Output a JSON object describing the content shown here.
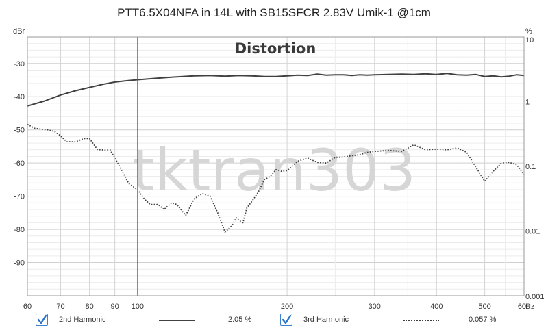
{
  "chart_data": {
    "type": "line",
    "title": "PTT6.5X04NFA in 14L with SB15SFCR 2.83V Umik-1 @1cm",
    "plot_label": "Distortion",
    "watermark": "tktran303",
    "x_axis": {
      "scale": "log",
      "range": [
        60,
        600
      ],
      "unit": "Hz",
      "ticks": [
        60,
        70,
        80,
        90,
        100,
        200,
        300,
        400,
        500,
        600
      ],
      "tick_labels": [
        "60",
        "70",
        "80",
        "90",
        "100",
        "200",
        "300",
        "400",
        "500",
        "600"
      ]
    },
    "y_axis_left": {
      "unit": "dBr",
      "range": [
        -100,
        -22
      ],
      "ticks": [
        -30,
        -40,
        -50,
        -60,
        -70,
        -80,
        -90
      ]
    },
    "y_axis_right": {
      "unit": "%",
      "scale": "log",
      "range": [
        0.001,
        10
      ],
      "ticks": [
        10,
        1,
        0.1,
        0.01,
        0.001
      ],
      "tick_labels": [
        "10",
        "1",
        "0.1",
        "0.01",
        "0.001"
      ]
    },
    "grid": true,
    "cursor_x": 100,
    "legend_placement": "bottom",
    "series": [
      {
        "name": "2nd Harmonic",
        "value_label": "2.05 %",
        "checked": true,
        "style": "solid",
        "color": "#404040",
        "x": [
          60,
          65,
          70,
          75,
          80,
          85,
          90,
          95,
          100,
          110,
          120,
          130,
          140,
          150,
          160,
          170,
          180,
          190,
          200,
          210,
          220,
          230,
          240,
          250,
          260,
          270,
          280,
          290,
          300,
          320,
          340,
          360,
          380,
          400,
          420,
          440,
          460,
          480,
          500,
          520,
          540,
          560,
          580,
          600
        ],
        "y": [
          -42.8,
          -41.3,
          -39.5,
          -38.2,
          -37.2,
          -36.3,
          -35.6,
          -35.2,
          -34.9,
          -34.4,
          -34.0,
          -33.7,
          -33.6,
          -33.8,
          -33.6,
          -33.7,
          -33.9,
          -33.9,
          -33.7,
          -33.5,
          -33.6,
          -33.2,
          -33.5,
          -33.4,
          -33.4,
          -33.6,
          -33.4,
          -33.5,
          -33.4,
          -33.3,
          -33.2,
          -33.3,
          -33.1,
          -33.3,
          -33.0,
          -33.4,
          -33.5,
          -33.3,
          -33.9,
          -33.7,
          -34.0,
          -33.8,
          -33.4,
          -33.6
        ]
      },
      {
        "name": "3rd Harmonic",
        "value_label": "0.057 %",
        "checked": true,
        "style": "dotted",
        "color": "#404040",
        "x": [
          60,
          62,
          64,
          66,
          68,
          70,
          72,
          75,
          78,
          80,
          83,
          86,
          88,
          90,
          93,
          96,
          100,
          103,
          106,
          110,
          113,
          117,
          120,
          125,
          130,
          135,
          140,
          145,
          150,
          155,
          158,
          160,
          163,
          166,
          170,
          175,
          180,
          185,
          190,
          195,
          200,
          210,
          220,
          230,
          240,
          250,
          260,
          270,
          280,
          290,
          300,
          320,
          340,
          360,
          380,
          400,
          420,
          440,
          460,
          480,
          500,
          520,
          540,
          560,
          580,
          600
        ],
        "y": [
          -48.3,
          -49.5,
          -49.8,
          -50.0,
          -50.5,
          -51.8,
          -53.6,
          -53.6,
          -52.6,
          -52.6,
          -55.9,
          -56.1,
          -56.0,
          -58.5,
          -62.3,
          -66.2,
          -68.0,
          -70.7,
          -72.5,
          -72.5,
          -74.0,
          -72.0,
          -72.5,
          -75.8,
          -70.8,
          -69.2,
          -70.0,
          -75.0,
          -80.8,
          -78.8,
          -76.5,
          -77.3,
          -78.0,
          -73.5,
          -71.5,
          -68.8,
          -65.0,
          -64.0,
          -62.0,
          -62.5,
          -62.3,
          -59.5,
          -58.5,
          -59.8,
          -60.0,
          -58.3,
          -58.2,
          -57.8,
          -57.5,
          -56.8,
          -56.5,
          -56.2,
          -56.5,
          -54.5,
          -56.0,
          -55.8,
          -56.0,
          -55.4,
          -56.8,
          -61.2,
          -65.5,
          -62.5,
          -60.0,
          -59.8,
          -60.5,
          -63.5
        ]
      }
    ]
  }
}
